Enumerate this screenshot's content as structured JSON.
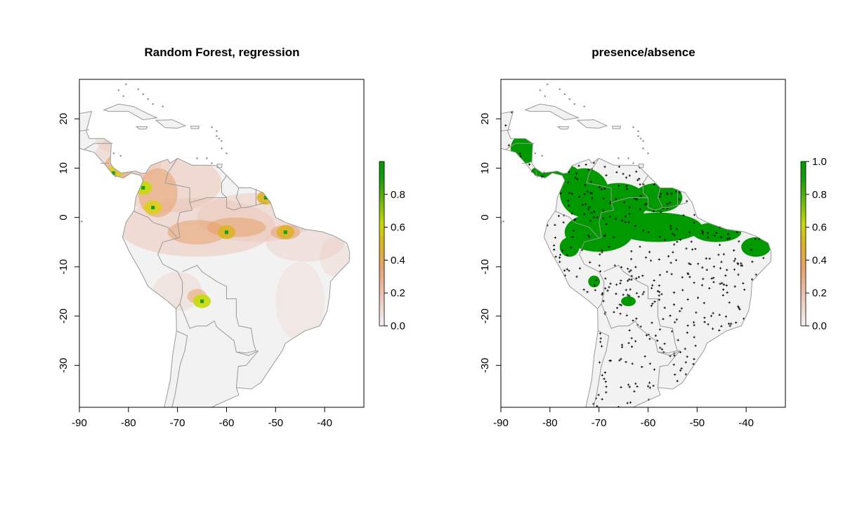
{
  "colors": {
    "land": "#f2f2f2",
    "border": "#999999",
    "frame": "#000000",
    "green": "#009900",
    "ramp": [
      "#f2f2f2",
      "#ecc4b6",
      "#e8a36b",
      "#dbb324",
      "#c6da0a",
      "#5fb20a",
      "#139e0c",
      "#009900"
    ]
  },
  "chart_data": [
    {
      "type": "heatmap",
      "title": "Random Forest, regression",
      "x_ticks": [
        -90,
        -80,
        -70,
        -60,
        -50,
        -40
      ],
      "y_ticks": [
        -30,
        -20,
        -10,
        0,
        10,
        20
      ],
      "xlim": [
        -90,
        -32
      ],
      "ylim": [
        -38.5,
        28
      ],
      "legend": {
        "position": "right",
        "range": [
          0,
          1
        ],
        "ticks": [
          "0.0",
          "0.2",
          "0.4",
          "0.6",
          "0.8"
        ]
      },
      "hotspots": [
        {
          "lon": -77,
          "lat": 6,
          "value": 0.62
        },
        {
          "lon": -75,
          "lat": 2,
          "value": 0.55
        },
        {
          "lon": -83,
          "lat": 9,
          "value": 0.5
        },
        {
          "lon": -65,
          "lat": -17,
          "value": 0.62
        },
        {
          "lon": -60,
          "lat": -3,
          "value": 0.45
        },
        {
          "lon": -48,
          "lat": -3,
          "value": 0.4
        },
        {
          "lon": -52,
          "lat": 4,
          "value": 0.35
        }
      ]
    },
    {
      "type": "heatmap",
      "title": "presence/absence",
      "x_ticks": [
        -90,
        -80,
        -70,
        -60,
        -50,
        -40
      ],
      "y_ticks": [
        -30,
        -20,
        -10,
        0,
        10,
        20
      ],
      "xlim": [
        -90,
        -32
      ],
      "ylim": [
        -38.5,
        28
      ],
      "legend": {
        "position": "right",
        "range": [
          0,
          1
        ],
        "ticks": [
          "0.0",
          "0.2",
          "0.4",
          "0.6",
          "0.8",
          "1.0"
        ]
      },
      "presence_areas": [
        {
          "lon": -79,
          "lat": 9,
          "rx": 5,
          "ry": 2
        },
        {
          "lon": -85,
          "lat": 14,
          "rx": 3,
          "ry": 3
        },
        {
          "lon": -73,
          "lat": 5,
          "rx": 5,
          "ry": 5
        },
        {
          "lon": -66,
          "lat": 3,
          "rx": 6,
          "ry": 4
        },
        {
          "lon": -58,
          "lat": 4,
          "rx": 5,
          "ry": 3
        },
        {
          "lon": -70,
          "lat": -3,
          "rx": 7,
          "ry": 4
        },
        {
          "lon": -58,
          "lat": -2,
          "rx": 9,
          "ry": 3
        },
        {
          "lon": -46,
          "lat": -3,
          "rx": 5,
          "ry": 2
        },
        {
          "lon": -38,
          "lat": -6,
          "rx": 3,
          "ry": 2
        },
        {
          "lon": -76,
          "lat": -6,
          "rx": 2,
          "ry": 2
        },
        {
          "lon": -64,
          "lat": -17,
          "rx": 1.5,
          "ry": 1
        },
        {
          "lon": -71,
          "lat": -13,
          "rx": 1.2,
          "ry": 1.2
        }
      ]
    }
  ]
}
